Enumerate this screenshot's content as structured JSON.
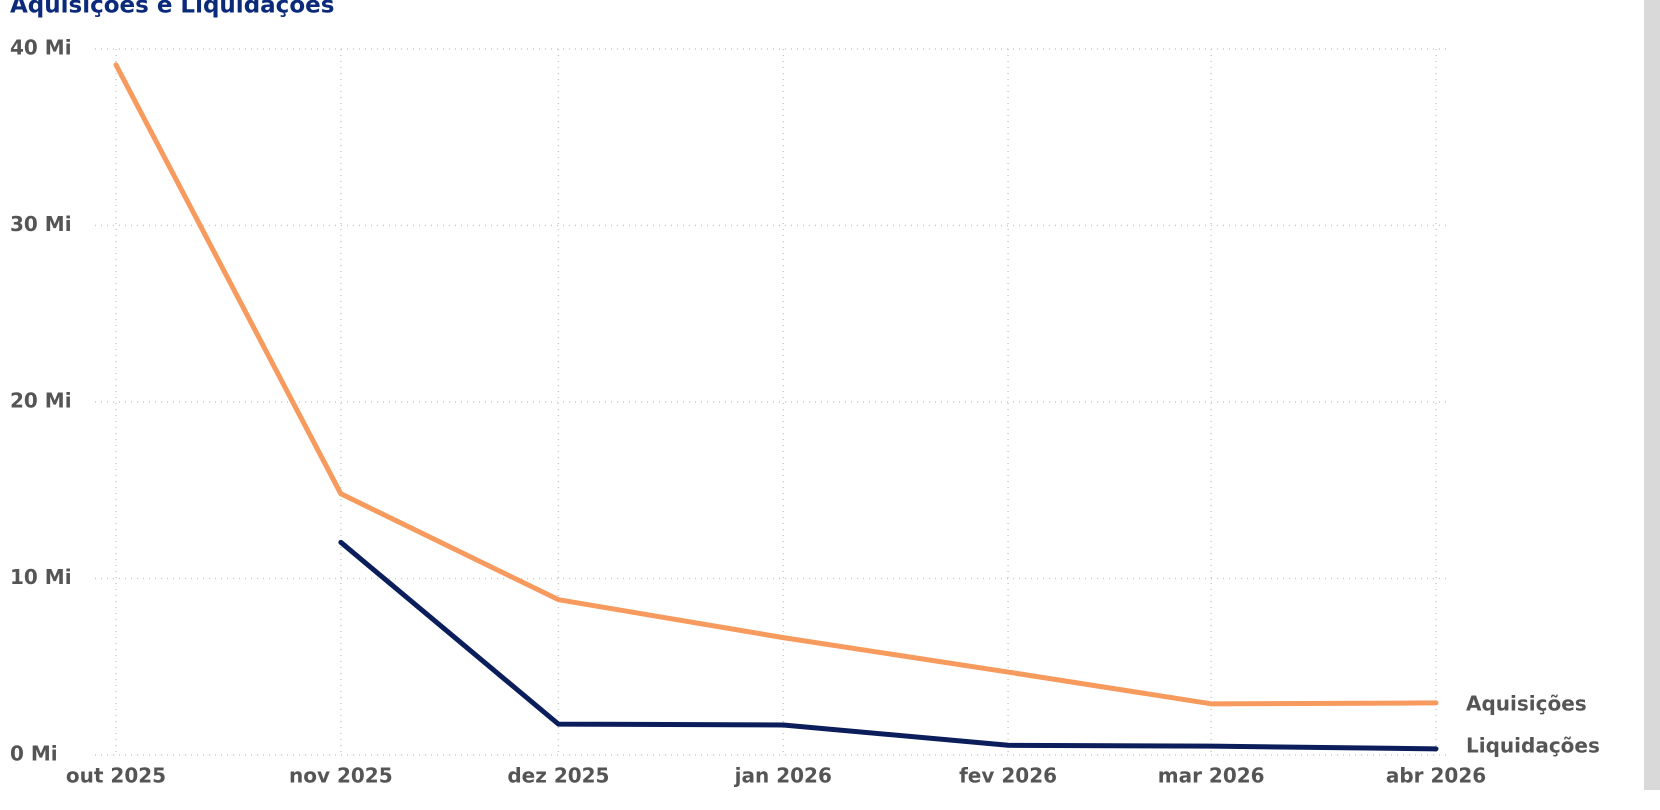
{
  "chart_data": {
    "type": "line",
    "title": "Aquisições e Liquidações",
    "x": [
      "2025-10",
      "2025-11",
      "2025-12",
      "2026-01",
      "2026-02",
      "2026-03",
      "2026-04"
    ],
    "xlim": [
      "2025-10",
      "2026-04"
    ],
    "xticks": [
      {
        "value": "2025-10",
        "label": "out 2025"
      },
      {
        "value": "2025-11",
        "label": "nov 2025"
      },
      {
        "value": "2025-12",
        "label": "dez 2025"
      },
      {
        "value": "2026-01",
        "label": "jan 2026"
      },
      {
        "value": "2026-02",
        "label": "fev 2026"
      },
      {
        "value": "2026-03",
        "label": "mar 2026"
      },
      {
        "value": "2026-04",
        "label": "abr 2026"
      }
    ],
    "ylim": [
      0,
      40
    ],
    "yticks": [
      {
        "value": 0,
        "label": "0 Mi"
      },
      {
        "value": 10,
        "label": "10 Mi"
      },
      {
        "value": 20,
        "label": "20 Mi"
      },
      {
        "value": 30,
        "label": "30 Mi"
      },
      {
        "value": 40,
        "label": "40 Mi"
      }
    ],
    "grid": true,
    "series": [
      {
        "name": "Aquisições",
        "color": "#f79a5e",
        "values": [
          39.1,
          14.8,
          8.8,
          6.65,
          4.7,
          2.9,
          2.95
        ]
      },
      {
        "name": "Liquidações",
        "color": "#0b1e5b",
        "values": [
          null,
          12.05,
          1.75,
          1.7,
          0.55,
          0.5,
          0.35
        ]
      }
    ]
  }
}
